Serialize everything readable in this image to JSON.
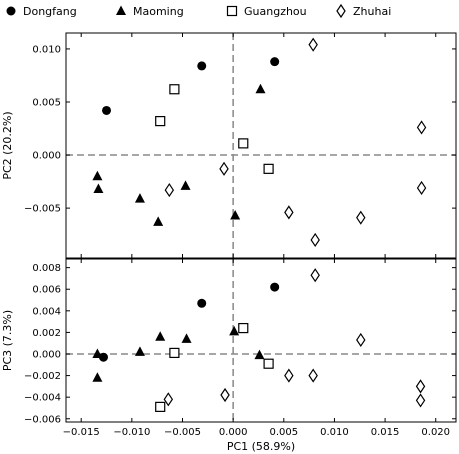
{
  "chart_data": {
    "type": "scatter",
    "legend": {
      "placement": "top",
      "entries": [
        {
          "name": "Dongfang",
          "marker": "circle-filled"
        },
        {
          "name": "Maoming",
          "marker": "triangle-filled"
        },
        {
          "name": "Guangzhou",
          "marker": "square-open"
        },
        {
          "name": "Zhuhai",
          "marker": "diamond-open"
        }
      ]
    },
    "xlabel": "PC1 (58.9%)",
    "xlim": [
      -0.0165,
      0.022
    ],
    "xticks": [
      -0.015,
      -0.01,
      -0.005,
      0.0,
      0.005,
      0.01,
      0.015,
      0.02
    ],
    "xtick_labels": [
      "−0.015",
      "−0.010",
      "−0.005",
      "0.000",
      "0.005",
      "0.010",
      "0.015",
      "0.020"
    ],
    "reference_lines": "dashed at x=0 and y=0",
    "panels": [
      {
        "ylabel": "PC2 (20.2%)",
        "ylim": [
          -0.0097,
          0.0115
        ],
        "yticks": [
          -0.005,
          0.0,
          0.005,
          0.01
        ],
        "ytick_labels": [
          "−0.005",
          "0.000",
          "0.005",
          "0.010"
        ],
        "series": [
          {
            "name": "Dongfang",
            "points": [
              [
                -0.0125,
                0.0042
              ],
              [
                -0.0031,
                0.0084
              ],
              [
                0.0041,
                0.0088
              ]
            ]
          },
          {
            "name": "Maoming",
            "points": [
              [
                -0.0134,
                -0.002
              ],
              [
                -0.0133,
                -0.0032
              ],
              [
                -0.0092,
                -0.0041
              ],
              [
                -0.0074,
                -0.0063
              ],
              [
                -0.0047,
                -0.0029
              ],
              [
                0.0002,
                -0.0057
              ],
              [
                0.0027,
                0.0062
              ]
            ]
          },
          {
            "name": "Guangzhou",
            "points": [
              [
                -0.0058,
                0.0062
              ],
              [
                -0.0072,
                0.0032
              ],
              [
                0.001,
                0.0011
              ],
              [
                0.0035,
                -0.0013
              ]
            ]
          },
          {
            "name": "Zhuhai",
            "points": [
              [
                -0.0063,
                -0.0033
              ],
              [
                -0.0009,
                -0.0013
              ],
              [
                0.0055,
                -0.0054
              ],
              [
                0.0079,
                0.0104
              ],
              [
                0.0081,
                -0.008
              ],
              [
                0.0126,
                -0.0059
              ],
              [
                0.0186,
                0.0026
              ],
              [
                0.0186,
                -0.0031
              ]
            ]
          }
        ]
      },
      {
        "ylabel": "PC3 (7.3%)",
        "ylim": [
          -0.0063,
          0.0088
        ],
        "yticks": [
          -0.006,
          -0.004,
          -0.002,
          0.0,
          0.002,
          0.004,
          0.006,
          0.008
        ],
        "ytick_labels": [
          "−0.006",
          "−0.004",
          "−0.002",
          "0.000",
          "0.002",
          "0.004",
          "0.006",
          "0.008"
        ],
        "series": [
          {
            "name": "Dongfang",
            "points": [
              [
                -0.0128,
                -0.0003
              ],
              [
                -0.0031,
                0.0047
              ],
              [
                0.0041,
                0.0062
              ]
            ]
          },
          {
            "name": "Maoming",
            "points": [
              [
                -0.0134,
                0.0
              ],
              [
                -0.0134,
                -0.0022
              ],
              [
                -0.0092,
                0.0002
              ],
              [
                -0.0072,
                0.0016
              ],
              [
                -0.0046,
                0.0014
              ],
              [
                0.0001,
                0.0021
              ],
              [
                0.0026,
                -0.0001
              ]
            ]
          },
          {
            "name": "Guangzhou",
            "points": [
              [
                -0.0058,
                0.0001
              ],
              [
                -0.0072,
                -0.0049
              ],
              [
                0.001,
                0.0024
              ],
              [
                0.0035,
                -0.0009
              ]
            ]
          },
          {
            "name": "Zhuhai",
            "points": [
              [
                -0.0064,
                -0.0042
              ],
              [
                -0.0008,
                -0.0038
              ],
              [
                0.0055,
                -0.002
              ],
              [
                0.0079,
                -0.002
              ],
              [
                0.0081,
                0.0073
              ],
              [
                0.0126,
                0.0013
              ],
              [
                0.0185,
                -0.003
              ],
              [
                0.0185,
                -0.0043
              ]
            ]
          }
        ]
      }
    ]
  }
}
